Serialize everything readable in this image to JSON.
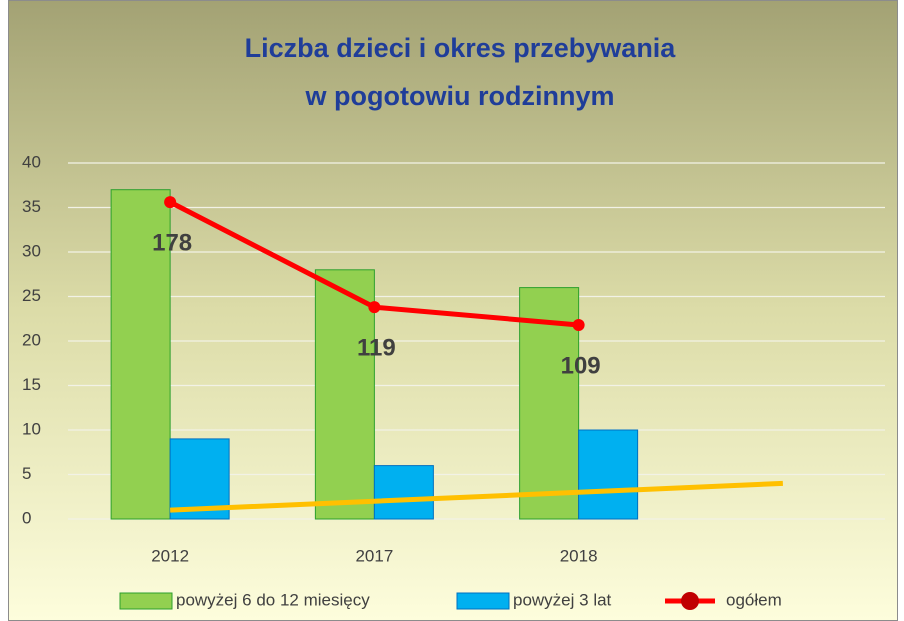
{
  "chart_data": {
    "type": "bar",
    "title": [
      "Liczba dzieci i okres przebywania",
      "w pogotowiu rodzinnym"
    ],
    "categories": [
      "2012",
      "2017",
      "2018",
      null
    ],
    "series": [
      {
        "name": "powyżej 6 do 12 miesięcy",
        "type": "bar",
        "color": "#92d050",
        "values": [
          37,
          28,
          26,
          null
        ]
      },
      {
        "name": "powyżej 3 lat",
        "type": "bar",
        "color": "#00b0f0",
        "values": [
          9,
          6,
          10,
          null
        ]
      },
      {
        "name": "ogółem",
        "type": "line",
        "axis": "y2",
        "color": "#ff0000",
        "values": [
          178,
          119,
          109,
          null
        ]
      },
      {
        "type": "line",
        "color": "#ffc000",
        "values": [
          1,
          2,
          3,
          4
        ]
      }
    ],
    "ylim": [
      0,
      40
    ],
    "yticks": [
      0,
      5,
      10,
      15,
      20,
      25,
      30,
      35,
      40
    ],
    "y2lim": [
      0,
      200
    ],
    "grid": true,
    "legend": "bottom"
  }
}
